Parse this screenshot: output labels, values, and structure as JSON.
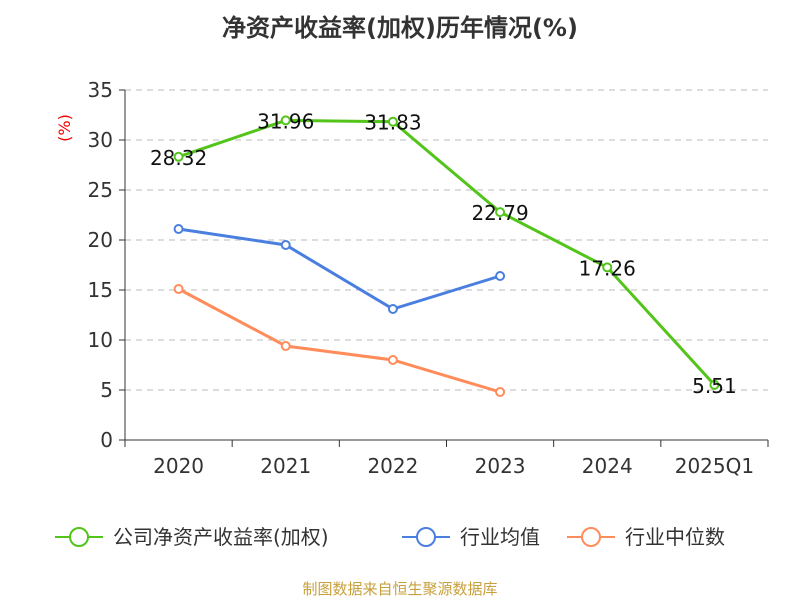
{
  "title": "净资产收益率(加权)历年情况(%)",
  "source": "制图数据来自恒生聚源数据库",
  "chart_data": {
    "type": "line",
    "title": "净资产收益率(加权)历年情况(%)",
    "ylabel": "(%)",
    "xlabel": "",
    "ylim": [
      0,
      35
    ],
    "yticks": [
      0,
      5,
      10,
      15,
      20,
      25,
      30,
      35
    ],
    "categories": [
      "2020",
      "2021",
      "2022",
      "2023",
      "2024",
      "2025Q1"
    ],
    "grid": true,
    "legend_position": "bottom",
    "series": [
      {
        "name": "公司净资产收益率(加权)",
        "color": "#52c41a",
        "values": [
          28.32,
          31.96,
          31.83,
          22.79,
          17.26,
          5.51
        ],
        "labels": [
          "28.32",
          "31.96",
          "31.83",
          "22.79",
          "17.26",
          "5.51"
        ]
      },
      {
        "name": "行业均值",
        "color": "#4a7fe0",
        "values": [
          21.1,
          19.5,
          13.1,
          16.4,
          null,
          null
        ]
      },
      {
        "name": "行业中位数",
        "color": "#ff8c5a",
        "values": [
          15.1,
          9.4,
          8.0,
          4.8,
          null,
          null
        ]
      }
    ]
  }
}
